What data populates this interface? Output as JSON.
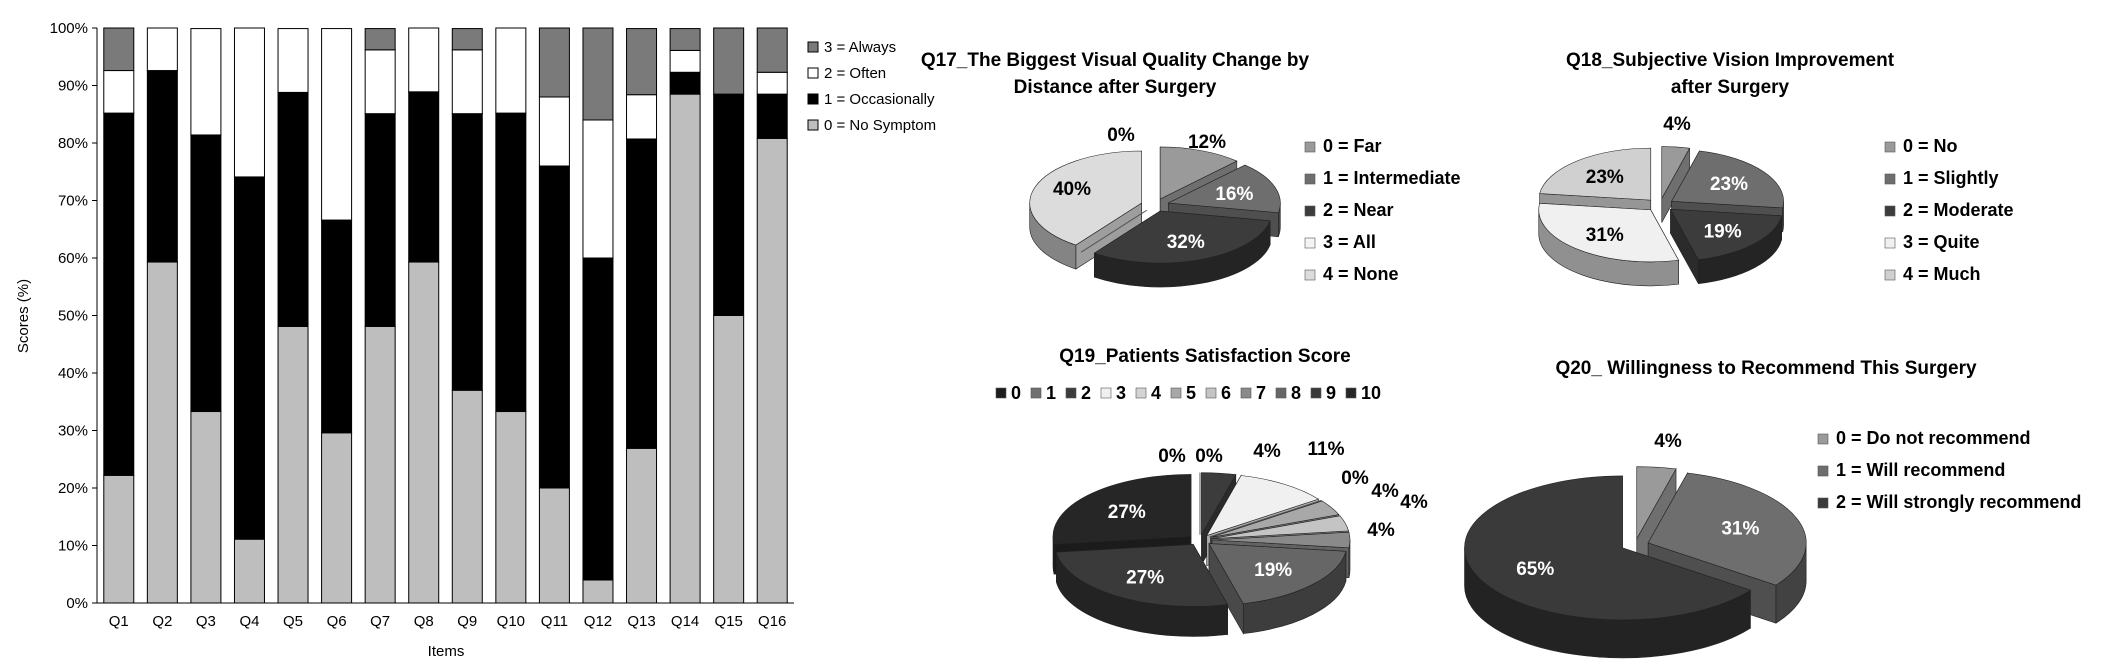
{
  "chart_data": [
    {
      "type": "bar",
      "stacked": true,
      "xlabel": "Items",
      "ylabel": "Scores (%)",
      "ylim": [
        0,
        100
      ],
      "yticks": [
        "0%",
        "10%",
        "20%",
        "30%",
        "40%",
        "50%",
        "60%",
        "70%",
        "80%",
        "90%",
        "100%"
      ],
      "legend_position": "right",
      "categories": [
        "Q1",
        "Q2",
        "Q3",
        "Q4",
        "Q5",
        "Q6",
        "Q7",
        "Q8",
        "Q9",
        "Q10",
        "Q11",
        "Q12",
        "Q13",
        "Q14",
        "Q15",
        "Q16"
      ],
      "series": [
        {
          "name": "0 = No Symptom",
          "color": "#bebebe",
          "values": [
            22.2,
            59.3,
            33.3,
            11.1,
            48.1,
            29.6,
            48.1,
            59.3,
            37.0,
            33.3,
            20.0,
            4.0,
            26.9,
            88.5,
            50.0,
            80.8
          ]
        },
        {
          "name": "1 = Occasionally",
          "color": "#000000",
          "values": [
            63.0,
            33.3,
            48.1,
            63.0,
            40.7,
            37.0,
            37.0,
            29.6,
            48.1,
            51.9,
            56.0,
            56.0,
            53.8,
            3.8,
            38.5,
            7.7
          ]
        },
        {
          "name": "2 = Often",
          "color": "#ffffff",
          "values": [
            7.4,
            7.4,
            18.5,
            25.9,
            11.1,
            33.3,
            11.1,
            11.1,
            11.1,
            14.8,
            12.0,
            24.0,
            7.7,
            3.8,
            0.0,
            3.8
          ]
        },
        {
          "name": "3 = Always",
          "color": "#7a7a7a",
          "values": [
            7.4,
            0.0,
            0.0,
            0.0,
            0.0,
            0.0,
            3.7,
            0.0,
            3.7,
            0.0,
            12.0,
            16.0,
            11.5,
            3.8,
            11.5,
            7.7
          ]
        }
      ],
      "legend_order": [
        "3 = Always",
        "2 = Often",
        "1 = Occasionally",
        "0 = No Symptom"
      ],
      "grid": false
    },
    {
      "type": "pie",
      "title_lines": [
        "Q17_The Biggest Visual Quality Change by",
        "Distance  after Surgery"
      ],
      "legend_position": "right",
      "slices": [
        {
          "label": "0 = Far",
          "value": 12,
          "color": "#9a9a9a",
          "text": "12%"
        },
        {
          "label": "1 = Intermediate",
          "value": 16,
          "color": "#6e6e6e",
          "text": "16%"
        },
        {
          "label": "2 = Near",
          "value": 32,
          "color": "#3c3c3c",
          "text": "32%"
        },
        {
          "label": "3 = All",
          "value": 0,
          "color": "#f4f4f4",
          "text": "0%"
        },
        {
          "label": "4 = None",
          "value": 40,
          "color": "#dcdcdc",
          "text": "40%"
        }
      ]
    },
    {
      "type": "pie",
      "title_lines": [
        "Q18_Subjective Vision Improvement",
        "after Surgery"
      ],
      "legend_position": "right",
      "slices": [
        {
          "label": "0 = No",
          "value": 4,
          "color": "#9a9a9a",
          "text": "4%"
        },
        {
          "label": "1 = Slightly",
          "value": 23,
          "color": "#6e6e6e",
          "text": "23%"
        },
        {
          "label": "2 = Moderate",
          "value": 19,
          "color": "#3c3c3c",
          "text": "19%"
        },
        {
          "label": "3 = Quite",
          "value": 31,
          "color": "#f0f0f0",
          "text": "31%"
        },
        {
          "label": "4 = Much",
          "value": 23,
          "color": "#d0d0d0",
          "text": "23%"
        }
      ]
    },
    {
      "type": "pie",
      "title_lines": [
        "Q19_Patients Satisfaction Score"
      ],
      "legend_position": "top",
      "slices": [
        {
          "label": "0",
          "value": 0,
          "color": "#1c1c1c",
          "text": "0%"
        },
        {
          "label": "1",
          "value": 0,
          "color": "#707070",
          "text": "0%"
        },
        {
          "label": "2",
          "value": 4,
          "color": "#3c3c3c",
          "text": "4%"
        },
        {
          "label": "3",
          "value": 11,
          "color": "#f0f0f0",
          "text": "11%"
        },
        {
          "label": "4",
          "value": 0,
          "color": "#d4d4d4",
          "text": "0%"
        },
        {
          "label": "5",
          "value": 4,
          "color": "#a8a8a8",
          "text": "4%"
        },
        {
          "label": "6",
          "value": 4,
          "color": "#c4c4c4",
          "text": "4%"
        },
        {
          "label": "7",
          "value": 4,
          "color": "#8a8a8a",
          "text": "4%"
        },
        {
          "label": "8",
          "value": 19,
          "color": "#666666",
          "text": "19%"
        },
        {
          "label": "9",
          "value": 27,
          "color": "#3a3a3a",
          "text": "27%"
        },
        {
          "label": "10",
          "value": 27,
          "color": "#262626",
          "text": "27%"
        }
      ]
    },
    {
      "type": "pie",
      "title_lines": [
        "Q20_ Willingness to Recommend This Surgery"
      ],
      "legend_position": "right",
      "slices": [
        {
          "label": "0  = Do not recommend",
          "value": 4,
          "color": "#9a9a9a",
          "text": "4%"
        },
        {
          "label": "1  = Will recommend",
          "value": 31,
          "color": "#6e6e6e",
          "text": "31%"
        },
        {
          "label": "2  = Will strongly recommend",
          "value": 65,
          "color": "#3a3a3a",
          "text": "65%"
        }
      ]
    }
  ]
}
